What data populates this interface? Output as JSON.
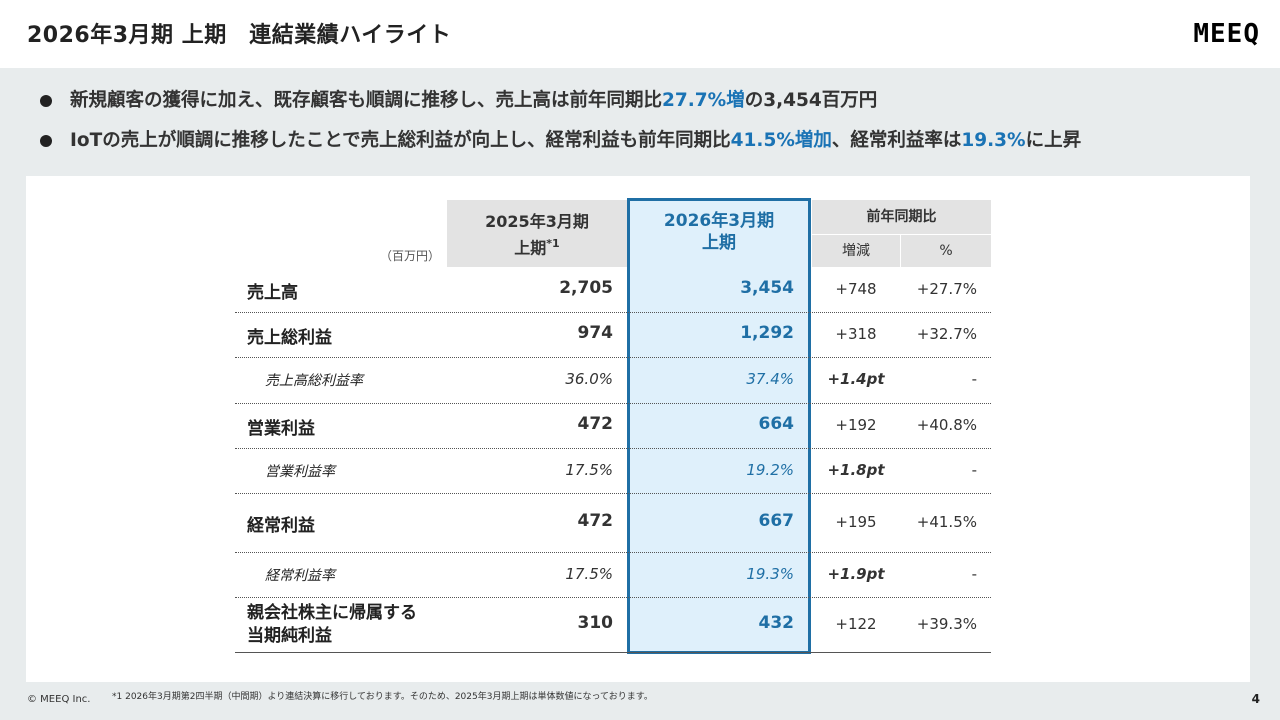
{
  "header": {
    "title": "2026年3月期 上期　連結業績ハイライト",
    "logo": "MEEQ"
  },
  "bullets": [
    {
      "parts": [
        {
          "text": "新規顧客の獲得に加え、既存顧客も順調に推移し、売上高は前年同期比",
          "hl": false
        },
        {
          "text": "27.7%増",
          "hl": true
        },
        {
          "text": "の3,454百万円",
          "hl": false
        }
      ]
    },
    {
      "parts": [
        {
          "text": "IoTの売上が順調に推移したことで売上総利益が向上し、経常利益も前年同期比",
          "hl": false
        },
        {
          "text": "41.5%増加",
          "hl": true
        },
        {
          "text": "、経常利益率は",
          "hl": false
        },
        {
          "text": "19.3%",
          "hl": true
        },
        {
          "text": "に上昇",
          "hl": false
        }
      ]
    }
  ],
  "table": {
    "unit": "（百万円）",
    "head_old_line1": "2025年3月期",
    "head_old_line2": "上期",
    "head_old_note": "*1",
    "head_new_line1": "2026年3月期",
    "head_new_line2": "上期",
    "head_yoy": "前年同期比",
    "head_inc": "増減",
    "head_pct": "%",
    "rows": [
      {
        "label": "売上高",
        "label2": "",
        "old": "2,705",
        "new": "3,454",
        "inc": "+748",
        "pct": "+27.7%"
      },
      {
        "label": "売上総利益",
        "label2": "",
        "old": "974",
        "new": "1,292",
        "inc": "+318",
        "pct": "+32.7%"
      },
      {
        "label": "売上高総利益率",
        "label2": "",
        "old": "36.0%",
        "new": "37.4%",
        "inc": "+1.4pt",
        "pct": "-"
      },
      {
        "label": "営業利益",
        "label2": "",
        "old": "472",
        "new": "664",
        "inc": "+192",
        "pct": "+40.8%"
      },
      {
        "label": "営業利益率",
        "label2": "",
        "old": "17.5%",
        "new": "19.2%",
        "inc": "+1.8pt",
        "pct": "-"
      },
      {
        "label": "経常利益",
        "label2": "",
        "old": "472",
        "new": "667",
        "inc": "+195",
        "pct": "+41.5%"
      },
      {
        "label": "経常利益率",
        "label2": "",
        "old": "17.5%",
        "new": "19.3%",
        "inc": "+1.9pt",
        "pct": "-"
      },
      {
        "label": "親会社株主に帰属する",
        "label2": "当期純利益",
        "old": "310",
        "new": "432",
        "inc": "+122",
        "pct": "+39.3%"
      }
    ]
  },
  "footer": {
    "copyright": "© MEEQ Inc.",
    "note": "*1 2026年3月期第2四半期（中間期）より連結決算に移行しております。そのため、2025年3月期上期は単体数値になっております。",
    "page": "4"
  },
  "colors": {
    "accent": "#1f6fa5",
    "highlight_text": "#1a73b5",
    "highlight_column_bg": "#dff0fb",
    "header_cell_bg": "#e3e3e3",
    "page_bg": "#e8eced"
  }
}
